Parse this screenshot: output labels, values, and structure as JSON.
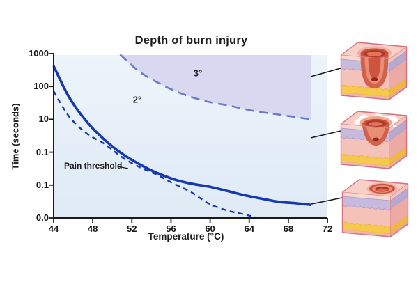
{
  "figure": {
    "labels": {
      "pain_threshold": "Pain threshold",
      "second_degree": "2°",
      "third_degree": "3°"
    }
  },
  "chart_data": {
    "type": "line",
    "title": "Depth of burn injury",
    "xlabel": "Temperature (°C)",
    "ylabel": "Time (seconds)",
    "x_ticks": [
      "44",
      "48",
      "52",
      "56",
      "60",
      "64",
      "68",
      "72"
    ],
    "y_tick_labels": [
      "1000",
      "100",
      "10",
      "0.1",
      "0.1",
      "0.0"
    ],
    "y_scale": "log",
    "xlim": [
      44,
      72
    ],
    "ylim_seconds": [
      0.01,
      1000
    ],
    "grid": false,
    "plot_bg_top": "#edf4fb",
    "plot_bg_bottom": "#dfeaf5",
    "series": [
      {
        "name": "3rd-degree burn boundary",
        "label": "3°",
        "line": "long-dash",
        "color": "#6b79d1",
        "region_fill": "#d8d9f1",
        "points": [
          [
            50.8,
            940
          ],
          [
            52.8,
            280
          ],
          [
            54.9,
            120
          ],
          [
            57.0,
            62
          ],
          [
            59.5,
            36
          ],
          [
            62.0,
            26
          ],
          [
            64.5,
            18
          ],
          [
            67.0,
            14
          ],
          [
            70.3,
            10
          ]
        ]
      },
      {
        "name": "burn injury (2nd-degree) boundary",
        "label": "2°",
        "line": "solid",
        "color": "#1638b0",
        "points": [
          [
            44,
            420
          ],
          [
            45.6,
            46
          ],
          [
            47.4,
            8.4
          ],
          [
            49.2,
            2.4
          ],
          [
            51,
            0.9
          ],
          [
            52.8,
            0.43
          ],
          [
            54.5,
            0.24
          ],
          [
            56.3,
            0.15
          ],
          [
            58.1,
            0.11
          ],
          [
            59.9,
            0.09
          ],
          [
            61.7,
            0.067
          ],
          [
            63.4,
            0.05
          ],
          [
            65.2,
            0.039
          ],
          [
            67,
            0.031
          ],
          [
            68.8,
            0.028
          ],
          [
            70.3,
            0.025
          ]
        ]
      },
      {
        "name": "Pain threshold",
        "label": "Pain threshold",
        "line": "short-dash",
        "color": "#1638b0",
        "points": [
          [
            44,
            72
          ],
          [
            45.6,
            12
          ],
          [
            47.4,
            3.7
          ],
          [
            49.2,
            1.8
          ],
          [
            51,
            0.7
          ],
          [
            52.8,
            0.35
          ],
          [
            54.5,
            0.21
          ],
          [
            56.3,
            0.11
          ],
          [
            58.1,
            0.06
          ],
          [
            59.9,
            0.027
          ],
          [
            61.7,
            0.017
          ],
          [
            63.4,
            0.013
          ],
          [
            65,
            0.01
          ]
        ]
      }
    ]
  },
  "illustrations": [
    {
      "id": "third-degree",
      "depicts": "skin cross-section cube with deep burn crater through dermis into fat layer"
    },
    {
      "id": "second-degree",
      "depicts": "skin cross-section cube with blistered crater reaching mid-dermis"
    },
    {
      "id": "first-degree",
      "depicts": "skin cross-section cube with shallow surface burn on epidermis"
    }
  ]
}
